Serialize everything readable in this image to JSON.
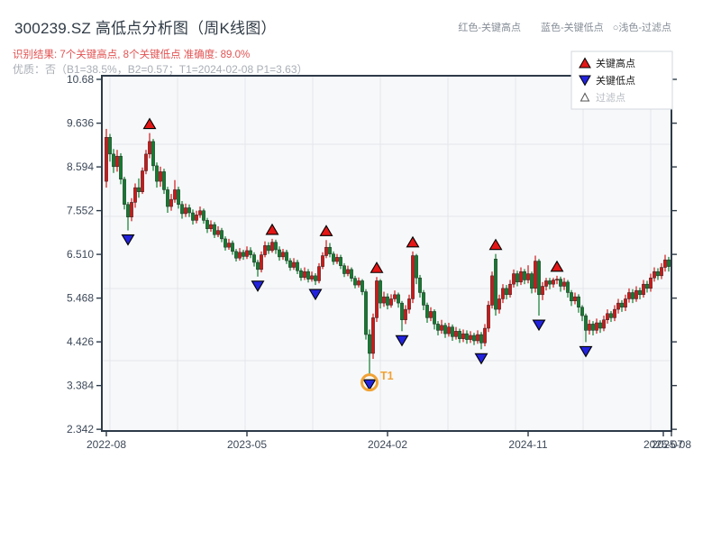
{
  "header": {
    "title": "300239.SZ 高低点分析图（周K线图）",
    "result_line": "识别结果: 7个关键高点, 8个关键低点  准确度: 89.0%",
    "quality_line": "优质：否（B1=38.5%，B2=0.57；T1=2024-02-08 P1=3.63）",
    "legend_right": [
      {
        "label": "红色-关键高点"
      },
      {
        "label": "蓝色-关键低点"
      },
      {
        "label": "○浅色-过滤点"
      }
    ]
  },
  "legend_box": {
    "items": [
      {
        "label": "关键高点",
        "marker": "up-triangle-icon",
        "fill": "#e41616",
        "text_color": "#1a1a1a"
      },
      {
        "label": "关键低点",
        "marker": "down-triangle-icon",
        "fill": "#2323dd",
        "text_color": "#1a1a1a"
      },
      {
        "label": "过滤点",
        "marker": "hollow-triangle-icon",
        "fill": "#ffffff",
        "text_color": "#b7bcc3"
      }
    ]
  },
  "colors": {
    "up_candle": "#cf1717",
    "down_candle": "#0f7d2e",
    "candle_edge": "#1a1a1a",
    "key_high_marker": "#e41616",
    "key_low_marker": "#2323dd",
    "marker_edge": "#000000",
    "t1_orange": "#f0a235",
    "plot_bg": "#f7f8fa",
    "grid": "#e4e6eb",
    "axis": "#2d3a48",
    "tick_text": "#3c4858"
  },
  "chart_data": {
    "type": "candlestick",
    "title": "300239.SZ 高低点分析图（周K线图）",
    "interval": "weekly",
    "y_min": 2.342,
    "y_max": 10.68,
    "y_ticks": [
      {
        "v": 10.68,
        "label": "10.68"
      },
      {
        "v": 9.636,
        "label": "9.636"
      },
      {
        "v": 8.594,
        "label": "8.594"
      },
      {
        "v": 7.552,
        "label": "7.552"
      },
      {
        "v": 6.51,
        "label": "6.510"
      },
      {
        "v": 5.468,
        "label": "5.468"
      },
      {
        "v": 4.426,
        "label": "4.426"
      },
      {
        "v": 3.384,
        "label": "3.384"
      },
      {
        "v": 2.342,
        "label": "2.342"
      }
    ],
    "x_ticks": [
      {
        "i": 0,
        "label": "2022-08"
      },
      {
        "i": 39,
        "label": "2023-05"
      },
      {
        "i": 78,
        "label": "2024-02"
      },
      {
        "i": 117,
        "label": "2024-11"
      },
      {
        "i": 154.5,
        "label": "2025-07"
      },
      {
        "i": 157,
        "label": "2025-08"
      }
    ],
    "candles": [
      [
        8.25,
        9.5,
        8.1,
        9.3
      ],
      [
        9.3,
        9.38,
        8.72,
        8.9
      ],
      [
        8.9,
        9.02,
        8.45,
        8.6
      ],
      [
        8.6,
        9.0,
        8.48,
        8.85
      ],
      [
        8.85,
        8.92,
        8.18,
        8.3
      ],
      [
        8.3,
        8.36,
        7.58,
        7.7
      ],
      [
        7.7,
        7.76,
        7.08,
        7.4
      ],
      [
        7.4,
        7.85,
        7.3,
        7.75
      ],
      [
        7.75,
        8.2,
        7.62,
        8.1
      ],
      [
        8.1,
        8.32,
        7.86,
        8.0
      ],
      [
        8.0,
        8.58,
        7.95,
        8.5
      ],
      [
        8.5,
        9.0,
        8.42,
        8.9
      ],
      [
        8.9,
        9.4,
        8.8,
        9.2
      ],
      [
        9.2,
        9.26,
        8.5,
        8.62
      ],
      [
        8.62,
        8.7,
        8.1,
        8.25
      ],
      [
        8.25,
        8.6,
        8.12,
        8.48
      ],
      [
        8.48,
        8.55,
        7.95,
        8.05
      ],
      [
        8.05,
        8.12,
        7.5,
        7.65
      ],
      [
        7.65,
        7.95,
        7.55,
        7.82
      ],
      [
        7.82,
        8.28,
        7.74,
        8.05
      ],
      [
        8.05,
        8.12,
        7.6,
        7.7
      ],
      [
        7.7,
        7.78,
        7.36,
        7.48
      ],
      [
        7.48,
        7.72,
        7.4,
        7.62
      ],
      [
        7.62,
        7.7,
        7.4,
        7.5
      ],
      [
        7.5,
        7.58,
        7.22,
        7.32
      ],
      [
        7.32,
        7.55,
        7.25,
        7.45
      ],
      [
        7.45,
        7.65,
        7.38,
        7.55
      ],
      [
        7.55,
        7.6,
        7.24,
        7.32
      ],
      [
        7.32,
        7.38,
        7.02,
        7.12
      ],
      [
        7.12,
        7.32,
        7.05,
        7.22
      ],
      [
        7.22,
        7.28,
        6.9,
        6.98
      ],
      [
        6.98,
        7.18,
        6.92,
        7.08
      ],
      [
        7.08,
        7.14,
        6.8,
        6.88
      ],
      [
        6.88,
        6.94,
        6.6,
        6.68
      ],
      [
        6.68,
        6.88,
        6.62,
        6.78
      ],
      [
        6.78,
        6.84,
        6.5,
        6.58
      ],
      [
        6.58,
        6.64,
        6.34,
        6.42
      ],
      [
        6.42,
        6.66,
        6.36,
        6.56
      ],
      [
        6.56,
        6.62,
        6.38,
        6.46
      ],
      [
        6.46,
        6.7,
        6.4,
        6.6
      ],
      [
        6.6,
        6.68,
        6.42,
        6.5
      ],
      [
        6.5,
        6.56,
        6.22,
        6.32
      ],
      [
        6.32,
        6.38,
        5.98,
        6.15
      ],
      [
        6.15,
        6.58,
        6.08,
        6.5
      ],
      [
        6.5,
        6.82,
        6.44,
        6.72
      ],
      [
        6.72,
        6.8,
        6.52,
        6.6
      ],
      [
        6.6,
        6.88,
        6.55,
        6.8
      ],
      [
        6.8,
        6.86,
        6.52,
        6.62
      ],
      [
        6.62,
        6.7,
        6.36,
        6.45
      ],
      [
        6.45,
        6.64,
        6.38,
        6.56
      ],
      [
        6.56,
        6.62,
        6.28,
        6.36
      ],
      [
        6.36,
        6.42,
        6.12,
        6.2
      ],
      [
        6.2,
        6.42,
        6.14,
        6.32
      ],
      [
        6.32,
        6.38,
        6.04,
        6.12
      ],
      [
        6.12,
        6.18,
        5.88,
        5.96
      ],
      [
        5.96,
        6.2,
        5.9,
        6.1
      ],
      [
        6.1,
        6.16,
        5.84,
        5.92
      ],
      [
        5.92,
        6.1,
        5.86,
        6.0
      ],
      [
        6.0,
        6.06,
        5.78,
        5.88
      ],
      [
        5.88,
        6.3,
        5.82,
        6.22
      ],
      [
        6.22,
        6.56,
        6.16,
        6.48
      ],
      [
        6.48,
        6.85,
        6.42,
        6.68
      ],
      [
        6.68,
        6.78,
        6.44,
        6.52
      ],
      [
        6.52,
        6.58,
        6.26,
        6.34
      ],
      [
        6.34,
        6.52,
        6.28,
        6.44
      ],
      [
        6.44,
        6.5,
        6.16,
        6.24
      ],
      [
        6.24,
        6.3,
        5.97,
        6.05
      ],
      [
        6.05,
        6.24,
        5.99,
        6.15
      ],
      [
        6.15,
        6.2,
        5.86,
        5.94
      ],
      [
        5.94,
        6.0,
        5.7,
        5.78
      ],
      [
        5.78,
        5.96,
        5.72,
        5.88
      ],
      [
        5.88,
        5.92,
        5.54,
        5.62
      ],
      [
        5.62,
        5.68,
        4.48,
        4.6
      ],
      [
        4.6,
        4.72,
        3.63,
        4.15
      ],
      [
        4.15,
        5.1,
        4.02,
        5.0
      ],
      [
        5.0,
        5.97,
        4.9,
        5.88
      ],
      [
        5.88,
        5.92,
        5.22,
        5.35
      ],
      [
        5.35,
        5.62,
        5.26,
        5.5
      ],
      [
        5.5,
        5.58,
        5.2,
        5.3
      ],
      [
        5.3,
        5.56,
        5.24,
        5.45
      ],
      [
        5.45,
        5.65,
        5.38,
        5.55
      ],
      [
        5.55,
        5.6,
        5.24,
        5.35
      ],
      [
        5.35,
        5.4,
        4.68,
        4.95
      ],
      [
        4.95,
        5.3,
        4.85,
        5.2
      ],
      [
        5.2,
        5.55,
        5.1,
        5.45
      ],
      [
        5.45,
        6.58,
        5.35,
        6.48
      ],
      [
        6.48,
        6.52,
        5.8,
        5.95
      ],
      [
        5.95,
        6.02,
        5.48,
        5.6
      ],
      [
        5.6,
        5.66,
        5.18,
        5.3
      ],
      [
        5.3,
        5.36,
        4.88,
        5.0
      ],
      [
        5.0,
        5.25,
        4.92,
        5.15
      ],
      [
        5.15,
        5.2,
        4.72,
        4.85
      ],
      [
        4.85,
        4.92,
        4.58,
        4.7
      ],
      [
        4.7,
        4.95,
        4.62,
        4.82
      ],
      [
        4.82,
        4.88,
        4.52,
        4.62
      ],
      [
        4.62,
        4.88,
        4.55,
        4.78
      ],
      [
        4.78,
        4.84,
        4.45,
        4.55
      ],
      [
        4.55,
        4.78,
        4.48,
        4.68
      ],
      [
        4.68,
        4.74,
        4.4,
        4.5
      ],
      [
        4.5,
        4.72,
        4.42,
        4.62
      ],
      [
        4.62,
        4.7,
        4.38,
        4.48
      ],
      [
        4.48,
        4.68,
        4.4,
        4.58
      ],
      [
        4.58,
        4.64,
        4.35,
        4.45
      ],
      [
        4.45,
        4.7,
        4.38,
        4.6
      ],
      [
        4.6,
        4.66,
        4.25,
        4.4
      ],
      [
        4.4,
        4.85,
        4.32,
        4.75
      ],
      [
        4.75,
        5.4,
        4.66,
        5.3
      ],
      [
        5.3,
        6.1,
        5.22,
        6.0
      ],
      [
        6.4,
        6.52,
        5.05,
        5.2
      ],
      [
        5.2,
        5.55,
        5.1,
        5.45
      ],
      [
        5.45,
        5.8,
        5.35,
        5.7
      ],
      [
        5.7,
        5.78,
        5.44,
        5.55
      ],
      [
        5.55,
        5.9,
        5.48,
        5.8
      ],
      [
        5.8,
        6.15,
        5.72,
        6.05
      ],
      [
        6.05,
        6.12,
        5.75,
        5.85
      ],
      [
        5.85,
        6.2,
        5.78,
        6.1
      ],
      [
        6.1,
        6.16,
        5.8,
        5.9
      ],
      [
        5.9,
        6.25,
        5.82,
        6.05
      ],
      [
        6.05,
        6.1,
        5.58,
        5.7
      ],
      [
        5.7,
        6.48,
        5.6,
        6.35
      ],
      [
        6.35,
        6.4,
        5.05,
        5.55
      ],
      [
        5.55,
        5.85,
        5.42,
        5.75
      ],
      [
        5.75,
        5.95,
        5.65,
        5.88
      ],
      [
        5.88,
        5.95,
        5.68,
        5.8
      ],
      [
        5.8,
        5.95,
        5.72,
        5.9
      ],
      [
        5.9,
        6.0,
        5.8,
        5.92
      ],
      [
        5.92,
        5.98,
        5.62,
        5.75
      ],
      [
        5.75,
        5.95,
        5.66,
        5.85
      ],
      [
        5.85,
        5.9,
        5.48,
        5.6
      ],
      [
        5.6,
        5.66,
        5.28,
        5.4
      ],
      [
        5.4,
        5.6,
        5.32,
        5.5
      ],
      [
        5.5,
        5.56,
        5.12,
        5.25
      ],
      [
        5.25,
        5.3,
        4.92,
        5.05
      ],
      [
        5.05,
        5.1,
        4.42,
        4.7
      ],
      [
        4.7,
        4.95,
        4.6,
        4.85
      ],
      [
        4.85,
        4.92,
        4.58,
        4.7
      ],
      [
        4.7,
        4.98,
        4.62,
        4.88
      ],
      [
        4.88,
        4.94,
        4.64,
        4.75
      ],
      [
        4.75,
        5.05,
        4.68,
        4.95
      ],
      [
        4.95,
        5.2,
        4.86,
        5.1
      ],
      [
        5.1,
        5.16,
        4.9,
        5.0
      ],
      [
        5.0,
        5.3,
        4.92,
        5.2
      ],
      [
        5.2,
        5.45,
        5.1,
        5.35
      ],
      [
        5.35,
        5.42,
        5.14,
        5.25
      ],
      [
        5.25,
        5.55,
        5.16,
        5.45
      ],
      [
        5.45,
        5.7,
        5.36,
        5.6
      ],
      [
        5.6,
        5.68,
        5.35,
        5.45
      ],
      [
        5.45,
        5.75,
        5.38,
        5.65
      ],
      [
        5.65,
        5.72,
        5.44,
        5.55
      ],
      [
        5.55,
        5.9,
        5.48,
        5.8
      ],
      [
        5.8,
        5.88,
        5.6,
        5.7
      ],
      [
        5.7,
        6.05,
        5.62,
        5.95
      ],
      [
        5.95,
        6.2,
        5.86,
        6.1
      ],
      [
        6.1,
        6.18,
        5.9,
        6.0
      ],
      [
        6.0,
        6.3,
        5.92,
        6.2
      ],
      [
        6.2,
        6.5,
        6.1,
        6.38
      ],
      [
        6.38,
        6.45,
        6.1,
        6.22
      ]
    ],
    "key_high_indices": [
      12,
      46,
      61,
      75,
      85,
      108,
      125
    ],
    "key_low_indices": [
      6,
      42,
      58,
      73,
      82,
      104,
      120,
      133
    ],
    "t1": {
      "index": 73,
      "label": "T1",
      "date": "2024-02-08",
      "price": 3.63
    }
  }
}
